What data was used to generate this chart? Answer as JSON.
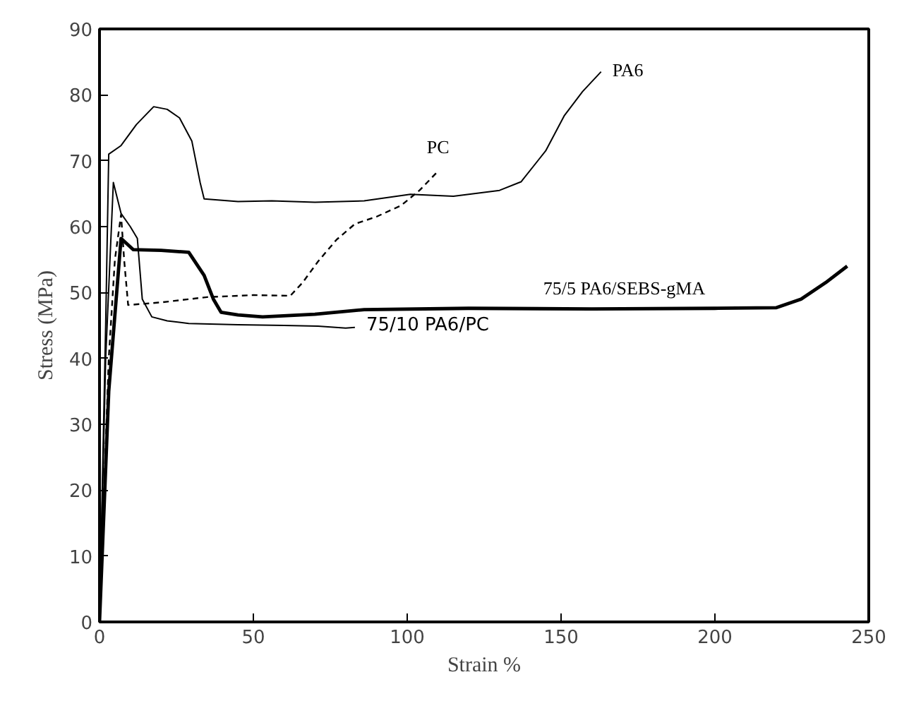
{
  "chart_data": {
    "type": "line",
    "xlabel": "Strain %",
    "ylabel": "Stress (MPa)",
    "xlim": [
      0,
      250
    ],
    "ylim": [
      0,
      90
    ],
    "xticks": [
      0,
      50,
      100,
      150,
      200,
      250
    ],
    "yticks": [
      0,
      10,
      20,
      30,
      40,
      50,
      60,
      70,
      80,
      90
    ],
    "grid": false,
    "marker": "none",
    "series": [
      {
        "name": "PA6",
        "color": "#000000",
        "line_style": "solid",
        "x": [
          0,
          2,
          3,
          7,
          12,
          17.6,
          22,
          26,
          30,
          32.7,
          34,
          45,
          56,
          70,
          86,
          101,
          115,
          130,
          137,
          145,
          151,
          157,
          163
        ],
        "values": [
          0,
          45,
          71,
          72.3,
          75.5,
          78.2,
          77.8,
          76.5,
          73,
          66.7,
          64.2,
          63.8,
          63.9,
          63.7,
          63.9,
          64.9,
          64.6,
          65.5,
          66.8,
          71.5,
          76.8,
          80.5,
          83.5
        ]
      },
      {
        "name": "PC",
        "color": "#000000",
        "line_style": "dashed",
        "x": [
          0,
          3,
          5,
          7,
          8,
          9.3,
          20,
          35,
          50,
          62,
          66,
          71,
          77,
          83,
          90,
          98,
          104,
          110
        ],
        "values": [
          0,
          40,
          55,
          61.8,
          55,
          48.1,
          48.5,
          49.3,
          49.6,
          49.5,
          51.5,
          54.7,
          58,
          60.4,
          61.5,
          63.2,
          65.5,
          68.4
        ]
      },
      {
        "name": "75/5 PA6/SEBS-gMA",
        "color": "#000000",
        "line_style": "solid",
        "x": [
          0,
          3,
          7,
          11,
          20,
          29,
          34,
          37,
          39.5,
          45,
          53,
          70,
          86,
          120,
          160,
          200,
          220,
          228,
          236,
          243
        ],
        "values": [
          0,
          35,
          58.2,
          56.5,
          56.4,
          56.1,
          52.6,
          49,
          47,
          46.6,
          46.3,
          46.7,
          47.4,
          47.6,
          47.5,
          47.6,
          47.7,
          49,
          51.5,
          54
        ]
      },
      {
        "name": "75/10 PA6/PC",
        "color": "#000000",
        "line_style": "solid",
        "x": [
          0,
          2,
          4.5,
          7,
          10,
          12.3,
          13.9,
          17,
          22,
          29,
          45,
          60,
          71,
          80,
          83
        ],
        "values": [
          0,
          40,
          66.7,
          62,
          60,
          58.2,
          49,
          46.3,
          45.7,
          45.3,
          45.1,
          45,
          44.9,
          44.6,
          44.7
        ]
      }
    ]
  }
}
